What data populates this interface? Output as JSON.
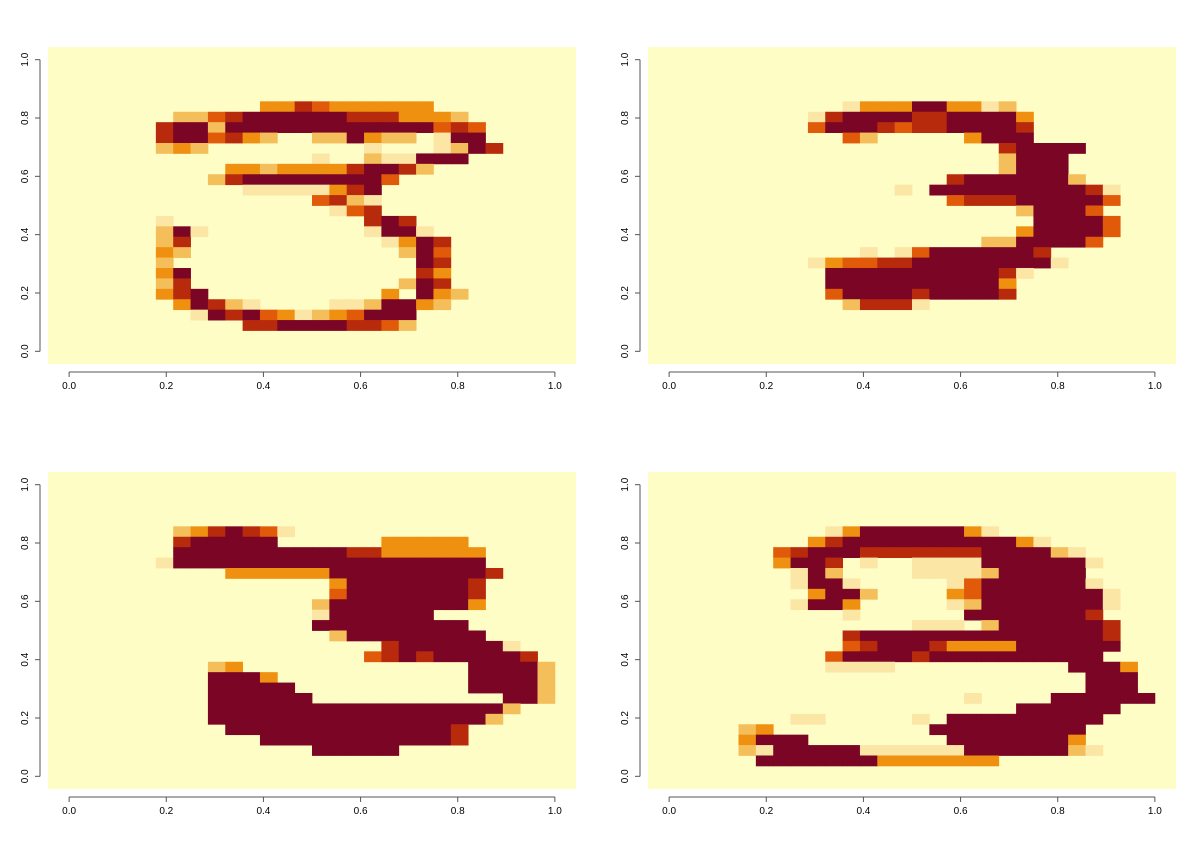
{
  "colors": {
    "background": "#fffdc6",
    "levels": [
      "#fffdc6",
      "#fbe6a6",
      "#f4bf5a",
      "#f09010",
      "#e05a0a",
      "#b82a0c",
      "#7b0525"
    ]
  },
  "chart_data": [
    {
      "type": "heatmap",
      "xlim": [
        0,
        1
      ],
      "ylim": [
        0,
        1
      ],
      "xticks": [
        "0.0",
        "0.2",
        "0.4",
        "0.6",
        "0.8",
        "1.0"
      ],
      "yticks": [
        "0.0",
        "0.2",
        "0.4",
        "0.6",
        "0.8",
        "1.0"
      ],
      "grid": false,
      "rows": [
        "............................",
        "............................",
        "............................",
        "............................",
        "...........3354333333.......",
        "......22456666665553332.....",
        ".....5662666666666666454....",
        ".....5664532..226322.166....",
        ".....232.........1...1265...",
        "..............1..211666.....",
        ".........332333356652.......",
        "........25666666664.........",
        "..........11111356..........",
        "..............4521..........",
        "...............145..........",
        ".....1...........565........",
        ".....261.........1661.......",
        ".....25...........1365......",
        ".....32............264......",
        ".....2..............65......",
        ".....36.............53......",
        ".....25............265......",
        ".....356..........3.632.....",
        "......36521....1126632......",
        ".......1656431234666........",
        "..........5566665542........",
        "............................",
        "............................"
      ]
    },
    {
      "type": "heatmap",
      "xlim": [
        0,
        1
      ],
      "ylim": [
        0,
        1
      ],
      "xticks": [
        "0.0",
        "0.2",
        "0.4",
        "0.6",
        "0.8",
        "1.0"
      ],
      "yticks": [
        "0.0",
        "0.2",
        "0.4",
        "0.6",
        "0.8",
        "1.0"
      ],
      "grid": false,
      "rows": [
        "............................",
        "............................",
        "............................",
        "............................",
        "..........1333663312........",
        "........1566665566663.......",
        "........4666545566665.......",
        "..........42.....3666.......",
        "...................56666....",
        "...................2666.....",
        "...................2666.....",
        "................56666662....",
        ".............1.66666666651..",
        "................4555666664..",
        "....................26664...",
        ".....................66664..",
        "....................366664..",
        "..................2266664...",
        "...........1.146666665......",
        "........134455666666661.....",
        ".........666666666651.......",
        ".........66666666663........",
        ".........46666566665........",
        "..........25551.............",
        "............................",
        "............................",
        "............................",
        "............................"
      ]
    },
    {
      "type": "heatmap",
      "xlim": [
        0,
        1
      ],
      "ylim": [
        0,
        1
      ],
      "xticks": [
        "0.0",
        "0.2",
        "0.4",
        "0.6",
        "0.8",
        "1.0"
      ],
      "yticks": [
        "0.0",
        "0.2",
        "0.4",
        "0.6",
        "0.8",
        "1.0"
      ],
      "grid": false,
      "rows": [
        "............................",
        "............................",
        "............................",
        "............................",
        "......2356541...............",
        "......566666......33333.....",
        "......666666666655333333....",
        ".....1666666666666666666....",
        ".........3333336666666665...",
        "...............366666665....",
        "...............466666665....",
        "..............2666666663....",
        "..............1666666.......",
        "..............666666666.....",
        "...............266666666....",
        "..................56666661..",
        ".................4565666665.",
        "........23.............66662",
        "........6663...........66662",
        "........66666..........66662",
        "........666666...........662",
        "........666666666666666662..",
        "........66666666666666662...",
        ".........66666666666665.....",
        "...........666666666665.....",
        "..............66666.........",
        "............................",
        "............................"
      ]
    },
    {
      "type": "heatmap",
      "xlim": [
        0,
        1
      ],
      "ylim": [
        0,
        1
      ],
      "xticks": [
        "0.0",
        "0.2",
        "0.4",
        "0.6",
        "0.8",
        "1.0"
      ],
      "yticks": [
        "0.0",
        "0.2",
        "0.4",
        "0.6",
        "0.8",
        "1.0"
      ],
      "grid": false,
      "rows": [
        "............................",
        "............................",
        "............................",
        "............................",
        ".........1366666631.........",
        "........35666666666631......",
        "......456665555555666621....",
        "......3665.1..11116666661...",
        ".......162....1111266666....",
        ".......1661.....146666661...",
        "........3662....3466666661..",
        ".......1663.....1266666661..",
        "..........1......66666665...",
        "..............111.26666665..",
        "..........5666666666666665..",
        "..........4566653333666666..",
        ".........4666656666666666...",
        ".........1111..........6663.",
        "........................666.",
        "........................666.",
        ".................1....666666",
        "....................666666..",
        ".......11.....1.666666666...",
        "....23.........666666666....",
        "....3666........66666663....",
        "....216666611111166666621...",
        ".....66666663333333.........",
        "............................"
      ]
    }
  ]
}
